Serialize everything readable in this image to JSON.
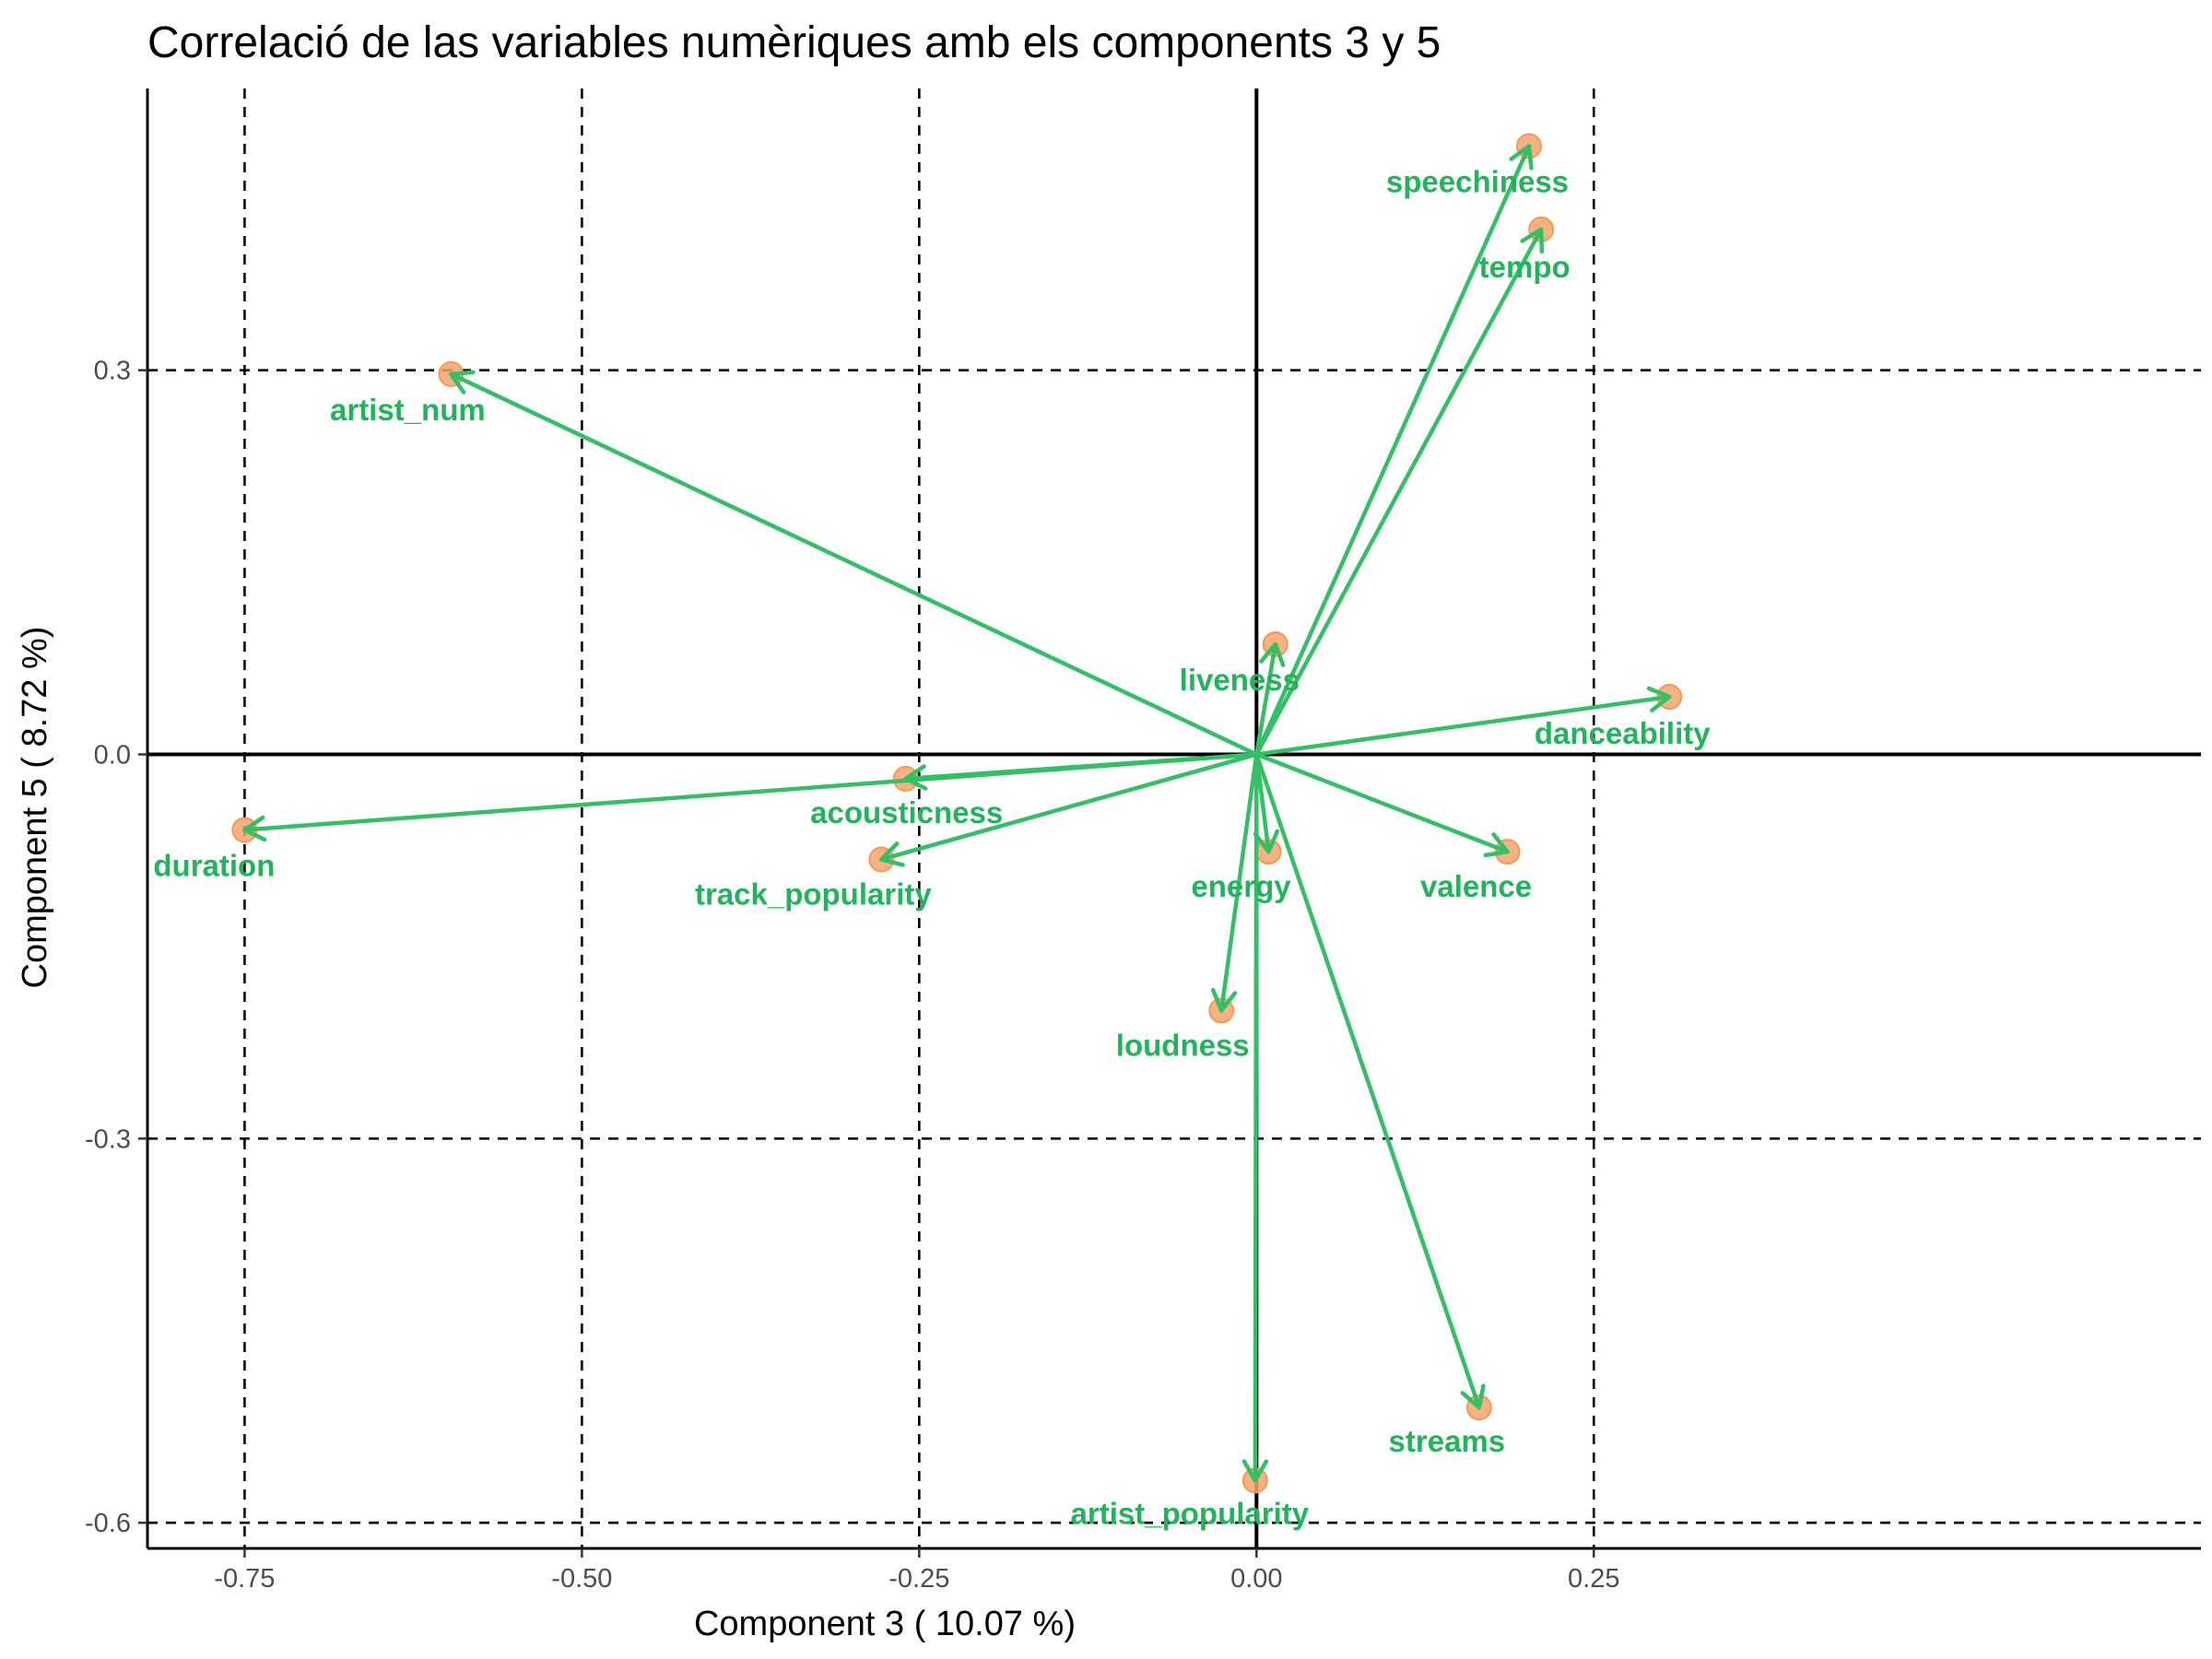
{
  "chart_data": {
    "type": "scatter",
    "subtype": "pca-correlation-circle",
    "title": "Correlació de las variables numèriques amb els components 3 y 5",
    "xlabel": "Component 3 ( 10.07 %)",
    "ylabel": "Component 5 ( 8.72 %)",
    "xlim": [
      -0.822,
      0.7
    ],
    "ylim": [
      -0.62,
      0.52
    ],
    "xticks": [
      -0.75,
      -0.5,
      -0.25,
      0.0,
      0.25
    ],
    "xtick_labels": [
      "-0.75",
      "-0.50",
      "-0.25",
      "0.00",
      "0.25"
    ],
    "yticks": [
      0.3,
      0.0,
      -0.3,
      -0.6
    ],
    "ytick_labels": [
      "0.3",
      "0.0",
      "-0.3",
      "-0.6"
    ],
    "grid": "dashed at ticks",
    "colors": {
      "arrow": "#33bf66",
      "label": "#22b45a",
      "point": "#f4a56b",
      "axis": "#000000"
    },
    "points": [
      {
        "name": "speechiness",
        "x": 0.202,
        "y": 0.475
      },
      {
        "name": "tempo",
        "x": 0.211,
        "y": 0.41
      },
      {
        "name": "artist_num",
        "x": -0.597,
        "y": 0.297
      },
      {
        "name": "liveness",
        "x": 0.014,
        "y": 0.086
      },
      {
        "name": "danceability",
        "x": 0.306,
        "y": 0.045
      },
      {
        "name": "acousticness",
        "x": -0.26,
        "y": -0.019
      },
      {
        "name": "duration",
        "x": -0.75,
        "y": -0.059
      },
      {
        "name": "track_popularity",
        "x": -0.278,
        "y": -0.082
      },
      {
        "name": "energy",
        "x": 0.009,
        "y": -0.076
      },
      {
        "name": "valence",
        "x": 0.186,
        "y": -0.076
      },
      {
        "name": "loudness",
        "x": -0.026,
        "y": -0.2
      },
      {
        "name": "streams",
        "x": 0.165,
        "y": -0.51
      },
      {
        "name": "artist_popularity",
        "x": -0.001,
        "y": -0.567
      }
    ]
  }
}
